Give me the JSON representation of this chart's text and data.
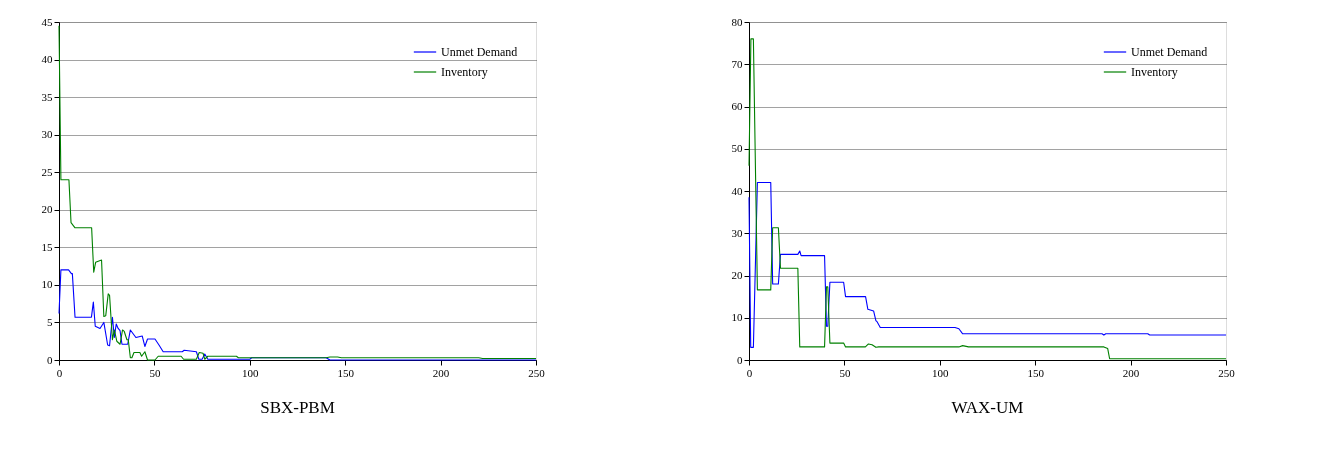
{
  "chart_data": [
    {
      "type": "line",
      "title": "SBX-PBM",
      "xlim": [
        0,
        250
      ],
      "xticks": [
        0,
        50,
        100,
        150,
        200,
        250
      ],
      "ylim": [
        0,
        45
      ],
      "yticks": [
        0,
        5,
        10,
        15,
        20,
        25,
        30,
        35,
        40,
        45
      ],
      "grid": "y",
      "legend": "top right",
      "series": [
        {
          "name": "Unmet Demand",
          "color": "#0000ff",
          "x": [
            0,
            1,
            5,
            6.5,
            7,
            8.4,
            17,
            18,
            19,
            21.5,
            23.5,
            25.5,
            26.5,
            28,
            29,
            30,
            31,
            32,
            33,
            36,
            37.4,
            40.3,
            43.6,
            45,
            46.4,
            50.3,
            52.4,
            54.6,
            64.6,
            65.6,
            72,
            73.3,
            75,
            76.4,
            78,
            100,
            101,
            140,
            142,
            250
          ],
          "values": [
            6.2,
            12,
            12,
            11.5,
            11.5,
            5.7,
            5.7,
            7.7,
            4.5,
            4.2,
            5,
            2,
            1.9,
            5.7,
            3,
            4.8,
            4.2,
            3.9,
            2.1,
            2.1,
            4,
            3,
            3.2,
            1.8,
            2.8,
            2.8,
            2,
            1.1,
            1.1,
            1.3,
            1.1,
            0.1,
            0.1,
            0.8,
            0.1,
            0.1,
            0.3,
            0.3,
            0,
            0
          ]
        },
        {
          "name": "Inventory",
          "color": "#008000",
          "x": [
            0,
            1,
            5.2,
            6.3,
            8.4,
            17.1,
            18.2,
            19.2,
            22.3,
            23.5,
            24.5,
            25.8,
            26.5,
            28,
            29,
            30.3,
            32,
            33.3,
            34.2,
            35.6,
            36.3,
            37.4,
            38.2,
            39.3,
            42.4,
            43.3,
            45,
            46.4,
            50.3,
            52,
            64,
            65.3,
            72,
            73.5,
            75.5,
            76.4,
            78,
            93,
            94,
            140,
            142,
            146,
            148,
            220,
            222,
            250
          ],
          "values": [
            44.5,
            24,
            24,
            18.3,
            17.6,
            17.6,
            11.7,
            13,
            13.3,
            5.8,
            5.9,
            8.8,
            8.6,
            2.7,
            4,
            2.5,
            2.1,
            4,
            3.8,
            2.7,
            2.7,
            0.3,
            0.3,
            1,
            1,
            0.5,
            1.1,
            0,
            0,
            0.5,
            0.5,
            0.1,
            0.1,
            1,
            0.9,
            0.1,
            0.5,
            0.5,
            0.3,
            0.3,
            0.4,
            0.4,
            0.3,
            0.3,
            0.2,
            0.2
          ]
        }
      ]
    },
    {
      "type": "line",
      "title": "WAX-UM",
      "xlim": [
        0,
        250
      ],
      "xticks": [
        0,
        50,
        100,
        150,
        200,
        250
      ],
      "ylim": [
        0,
        80
      ],
      "yticks": [
        0,
        10,
        20,
        30,
        40,
        50,
        60,
        70,
        80
      ],
      "grid": "y",
      "legend": "top right",
      "series": [
        {
          "name": "Unmet Demand",
          "color": "#0000ff",
          "x": [
            0,
            0.9,
            2.3,
            4.4,
            11.4,
            12.4,
            15.4,
            16.5,
            25.6,
            26.6,
            27.3,
            39.6,
            40.6,
            41.3,
            42.4,
            49.6,
            50.6,
            61.1,
            62.3,
            65.3,
            66.5,
            67.2,
            68.8,
            108,
            110,
            112,
            185,
            186,
            187,
            209,
            210,
            250
          ],
          "values": [
            38.5,
            3,
            3,
            42,
            42,
            18,
            18,
            25,
            25,
            25.8,
            24.7,
            24.7,
            8,
            8,
            18.4,
            18.4,
            15,
            15,
            12,
            11.6,
            9.3,
            9,
            7.7,
            7.7,
            7.4,
            6.2,
            6.2,
            5.9,
            6.2,
            6.2,
            5.9,
            5.9
          ]
        },
        {
          "name": "Inventory",
          "color": "#008000",
          "x": [
            0,
            1,
            2.3,
            4.4,
            11.4,
            12.4,
            15.4,
            16.5,
            25.6,
            26.6,
            39.6,
            40.6,
            41.3,
            42.4,
            49.6,
            50.6,
            61,
            62.6,
            64.5,
            66.5,
            68,
            110,
            112,
            115,
            186,
            188,
            189,
            250
          ],
          "values": [
            46,
            76,
            76,
            16.6,
            16.6,
            31.3,
            31.3,
            21.7,
            21.7,
            3.1,
            3.1,
            17.3,
            17.3,
            4,
            4,
            3.1,
            3.1,
            3.8,
            3.6,
            3,
            3.1,
            3.1,
            3.4,
            3.1,
            3.1,
            2.7,
            0.3,
            0.3
          ]
        }
      ]
    }
  ]
}
